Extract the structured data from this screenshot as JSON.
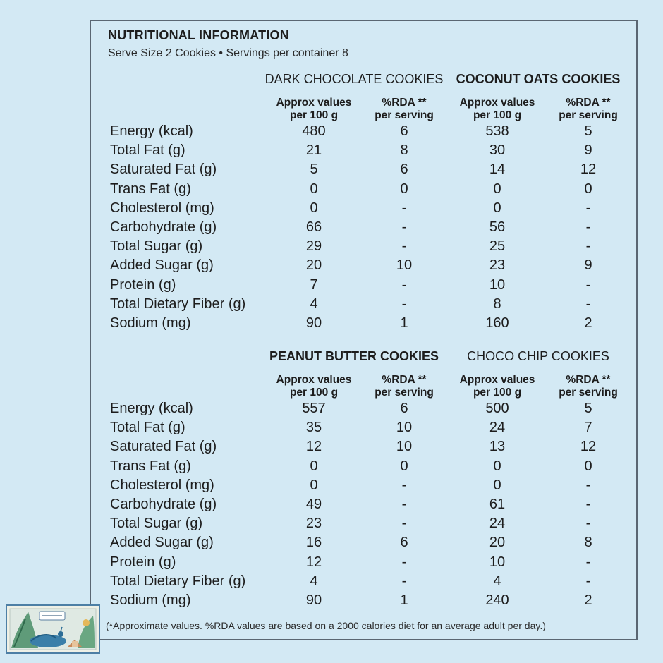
{
  "header": {
    "title": "NUTRITIONAL INFORMATION",
    "subtitle": "Serve Size 2 Cookies • Servings per container 8"
  },
  "column_headers": {
    "approx": [
      "Approx values",
      "per 100 g"
    ],
    "rda": [
      "%RDA **",
      "per serving"
    ]
  },
  "sections": [
    {
      "products": [
        "DARK CHOCOLATE COOKIES",
        "COCONUT OATS COOKIES"
      ],
      "rows": [
        {
          "label": "Energy (kcal)",
          "values": [
            "480",
            "6",
            "538",
            "5"
          ]
        },
        {
          "label": "Total Fat (g)",
          "values": [
            "21",
            "8",
            "30",
            "9"
          ]
        },
        {
          "label": "Saturated Fat (g)",
          "values": [
            "5",
            "6",
            "14",
            "12"
          ]
        },
        {
          "label": "Trans Fat (g)",
          "values": [
            "0",
            "0",
            "0",
            "0"
          ]
        },
        {
          "label": "Cholesterol (mg)",
          "values": [
            "0",
            "-",
            "0",
            "-"
          ]
        },
        {
          "label": "Carbohydrate (g)",
          "values": [
            "66",
            "-",
            "56",
            "-"
          ]
        },
        {
          "label": "Total Sugar (g)",
          "values": [
            "29",
            "-",
            "25",
            "-"
          ]
        },
        {
          "label": "Added Sugar (g)",
          "values": [
            "20",
            "10",
            "23",
            "9"
          ]
        },
        {
          "label": "Protein (g)",
          "values": [
            "7",
            "-",
            "10",
            "-"
          ]
        },
        {
          "label": "Total Dietary Fiber (g)",
          "values": [
            "4",
            "-",
            "8",
            "-"
          ]
        },
        {
          "label": "Sodium (mg)",
          "values": [
            "90",
            "1",
            "160",
            "2"
          ]
        }
      ]
    },
    {
      "products": [
        "PEANUT BUTTER COOKIES",
        "CHOCO CHIP COOKIES"
      ],
      "rows": [
        {
          "label": "Energy (kcal)",
          "values": [
            "557",
            "6",
            "500",
            "5"
          ]
        },
        {
          "label": "Total Fat (g)",
          "values": [
            "35",
            "10",
            "24",
            "7"
          ]
        },
        {
          "label": "Saturated Fat (g)",
          "values": [
            "12",
            "10",
            "13",
            "12"
          ]
        },
        {
          "label": "Trans Fat (g)",
          "values": [
            "0",
            "0",
            "0",
            "0"
          ]
        },
        {
          "label": "Cholesterol (mg)",
          "values": [
            "0",
            "-",
            "0",
            "-"
          ]
        },
        {
          "label": "Carbohydrate (g)",
          "values": [
            "49",
            "-",
            "61",
            "-"
          ]
        },
        {
          "label": "Total Sugar (g)",
          "values": [
            "23",
            "-",
            "24",
            "-"
          ]
        },
        {
          "label": "Added Sugar (g)",
          "values": [
            "16",
            "6",
            "20",
            "8"
          ]
        },
        {
          "label": "Protein (g)",
          "values": [
            "12",
            "-",
            "10",
            "-"
          ]
        },
        {
          "label": "Total Dietary Fiber (g)",
          "values": [
            "4",
            "-",
            "4",
            "-"
          ]
        },
        {
          "label": "Sodium (mg)",
          "values": [
            "90",
            "1",
            "240",
            "2"
          ]
        }
      ]
    }
  ],
  "footnote": "(*Approximate values. %RDA values are based on a 2000 calories diet for an average adult per day.)",
  "colors": {
    "background": "#d3e9f4",
    "border": "#5a6672",
    "text": "#1d1d1d"
  }
}
